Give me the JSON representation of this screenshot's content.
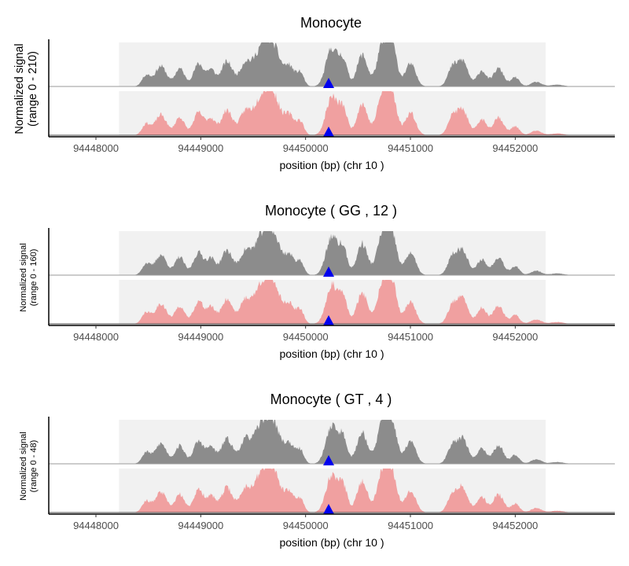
{
  "chart_data": [
    {
      "type": "area",
      "title": "Monocyte",
      "ylabel_line1": "Normalized signal",
      "ylabel_line2": "(range 0 - 210)",
      "xlabel": "position (bp) (chr 10 )",
      "xticks": [
        94448000,
        94449000,
        94450000,
        94451000,
        94452000
      ],
      "xtick_labels": [
        "94448000",
        "94449000",
        "94450000",
        "94451000",
        "94452000"
      ],
      "xlim": [
        94447550,
        94452950
      ],
      "highlight_region": [
        94448220,
        94452290
      ],
      "marker_position": 94450220,
      "marker_color": "#0000ee",
      "grid": false,
      "ylim": [
        0,
        210
      ],
      "series": [
        {
          "color": "#8c8c8c",
          "seed": 11
        },
        {
          "color": "#f0a0a0",
          "seed": 23
        }
      ]
    },
    {
      "type": "area",
      "title": "Monocyte ( GG , 12 )",
      "ylabel_line1": "Normalized signal",
      "ylabel_line2": "(range 0 - 160)",
      "xlabel": "position (bp) (chr 10 )",
      "xticks": [
        94448000,
        94449000,
        94450000,
        94451000,
        94452000
      ],
      "xtick_labels": [
        "94448000",
        "94449000",
        "94450000",
        "94451000",
        "94452000"
      ],
      "xlim": [
        94447550,
        94452950
      ],
      "highlight_region": [
        94448220,
        94452290
      ],
      "marker_position": 94450220,
      "marker_color": "#0000ee",
      "grid": false,
      "ylim": [
        0,
        160
      ],
      "series": [
        {
          "color": "#8c8c8c",
          "seed": 37
        },
        {
          "color": "#f0a0a0",
          "seed": 41
        }
      ]
    },
    {
      "type": "area",
      "title": "Monocyte ( GT , 4 )",
      "ylabel_line1": "Normalized signal",
      "ylabel_line2": "(range 0 - 48)",
      "xlabel": "position (bp) (chr 10 )",
      "xticks": [
        94448000,
        94449000,
        94450000,
        94451000,
        94452000
      ],
      "xtick_labels": [
        "94448000",
        "94449000",
        "94450000",
        "94451000",
        "94452000"
      ],
      "xlim": [
        94447550,
        94452950
      ],
      "highlight_region": [
        94448220,
        94452290
      ],
      "marker_position": 94450220,
      "marker_color": "#0000ee",
      "grid": false,
      "ylim": [
        0,
        48
      ],
      "series": [
        {
          "color": "#8c8c8c",
          "seed": 53
        },
        {
          "color": "#f0a0a0",
          "seed": 67
        }
      ]
    }
  ]
}
